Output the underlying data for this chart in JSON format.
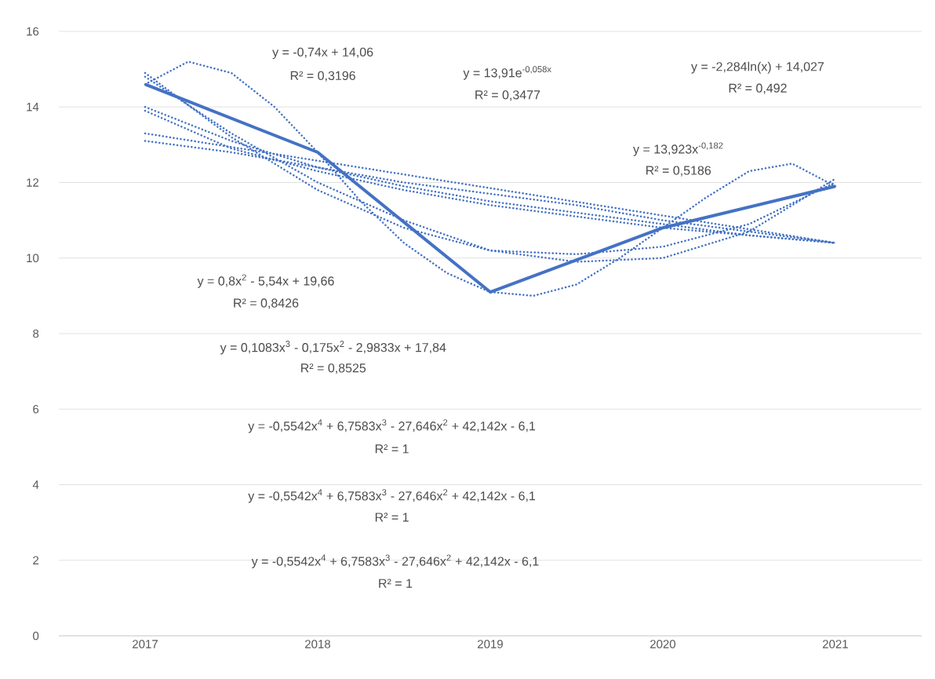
{
  "chart_data": {
    "type": "line",
    "x": [
      2017,
      2018,
      2019,
      2020,
      2021
    ],
    "xlim": [
      2016.5,
      2021.5
    ],
    "xticks": [
      2017,
      2018,
      2019,
      2020,
      2021
    ],
    "ylim": [
      0,
      16
    ],
    "yticks": [
      0,
      2,
      4,
      6,
      8,
      10,
      12,
      14,
      16
    ],
    "grid": "y",
    "marker": "none",
    "series": [
      {
        "color": "#4472c4",
        "line_style": "solid",
        "values": [
          14.6,
          12.8,
          9.1,
          10.8,
          11.9
        ]
      },
      {
        "type": "line",
        "color": "#4472c4",
        "line_style": "dotted",
        "x": [
          2017,
          2021
        ],
        "values": [
          13.3,
          10.4
        ]
      },
      {
        "type": "line",
        "color": "#4472c4",
        "line_style": "dotted",
        "x": [
          2017,
          2017.5,
          2018,
          2018.5,
          2019,
          2019.5,
          2020,
          2020.5,
          2021
        ],
        "values": [
          13.1,
          12.8,
          12.4,
          12.0,
          11.7,
          11.4,
          11.0,
          10.7,
          10.4
        ]
      },
      {
        "type": "line",
        "color": "#4472c4",
        "line_style": "dotted",
        "x": [
          2017,
          2017.5,
          2018,
          2018.5,
          2019,
          2019.5,
          2020,
          2020.5,
          2021
        ],
        "values": [
          14.0,
          13.1,
          12.4,
          11.9,
          11.5,
          11.2,
          10.9,
          10.6,
          10.4
        ]
      },
      {
        "type": "line",
        "color": "#4472c4",
        "line_style": "dotted",
        "x": [
          2017,
          2017.5,
          2018,
          2018.5,
          2019,
          2019.5,
          2020,
          2020.5,
          2021
        ],
        "values": [
          13.9,
          12.9,
          12.3,
          11.8,
          11.4,
          11.1,
          10.8,
          10.6,
          10.4
        ]
      },
      {
        "type": "line",
        "color": "#4472c4",
        "line_style": "dotted",
        "x": [
          2017,
          2017.5,
          2018,
          2018.5,
          2019,
          2019.5,
          2020,
          2020.5,
          2021
        ],
        "values": [
          14.9,
          13.2,
          11.8,
          10.8,
          10.2,
          10.1,
          10.3,
          10.9,
          12.0
        ]
      },
      {
        "type": "line",
        "color": "#4472c4",
        "line_style": "dotted",
        "x": [
          2017,
          2017.5,
          2018,
          2018.5,
          2019,
          2019.5,
          2020,
          2020.5,
          2021
        ],
        "values": [
          14.8,
          13.3,
          12.0,
          11.0,
          10.2,
          9.9,
          10.0,
          10.7,
          12.1
        ]
      },
      {
        "type": "line",
        "color": "#4472c4",
        "line_style": "dotted",
        "x": [
          2017,
          2017.25,
          2017.5,
          2017.75,
          2018,
          2018.25,
          2018.5,
          2018.75,
          2019,
          2019.25,
          2019.5,
          2019.75,
          2020,
          2020.25,
          2020.5,
          2020.75,
          2021
        ],
        "values": [
          14.6,
          15.2,
          14.9,
          14.0,
          12.8,
          11.5,
          10.4,
          9.6,
          9.1,
          9.0,
          9.3,
          10.0,
          10.8,
          11.6,
          12.3,
          12.5,
          11.9
        ]
      }
    ],
    "annotations": [
      "y = -0,74x + 14,06",
      "R² = 0,3196",
      "y = 13,91e$^{-0,058x}$",
      "R² = 0,3477",
      "y = -2,284ln(x) + 14,027",
      "R² = 0,492",
      "y = 13,923x$^{-0,182}$",
      "R² = 0,5186",
      "y = 0,8x$^{2}$ - 5,54x + 19,66",
      "R² = 0,8426",
      "y = 0,1083x$^{3}$ - 0,175x$^{2}$ - 2,9833x + 17,84",
      "R² = 0,8525",
      "y = -0,5542x$^{4}$ + 6,7583x$^{3}$ - 27,646x$^{2}$ + 42,142x - 6,1",
      "R² = 1",
      "y = -0,5542x$^{4}$ + 6,7583x$^{3}$ - 27,646x$^{2}$ + 42,142x - 6,1",
      "R² = 1",
      "y = -0,5542x$^{4}$ + 6,7583x$^{3}$ - 27,646x$^{2}$ + 42,142x - 6,1",
      "R² = 1"
    ]
  }
}
